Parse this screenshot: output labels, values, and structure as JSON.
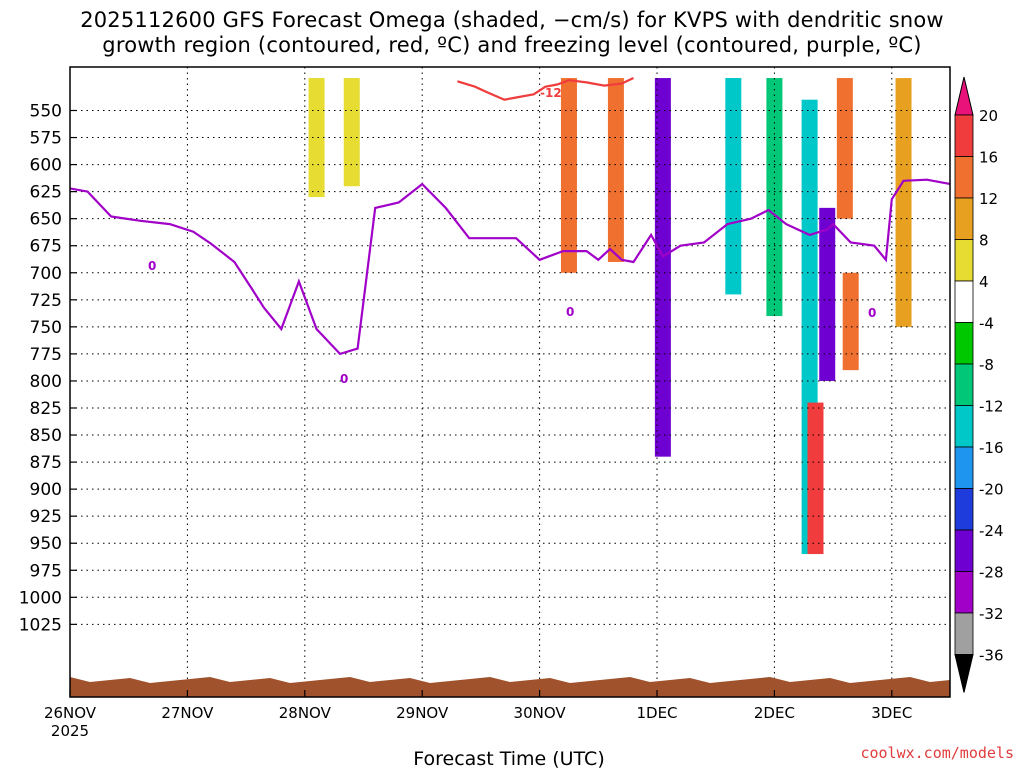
{
  "chart_data": {
    "type": "heatmap",
    "title_line1": "2025112600 GFS Forecast Omega (shaded, −cm/s) for KVPS with dendritic snow",
    "title_line2": "growth region (contoured, red, ºC) and freezing level (contoured, purple, ºC)",
    "xlabel": "Forecast Time (UTC)",
    "ylabel": "",
    "y_ticks": [
      "550",
      "575",
      "600",
      "625",
      "650",
      "675",
      "700",
      "725",
      "750",
      "775",
      "800",
      "825",
      "850",
      "875",
      "900",
      "925",
      "950",
      "975",
      "1000",
      "1025"
    ],
    "x_ticks": [
      "26NOV",
      "27NOV",
      "28NOV",
      "29NOV",
      "30NOV",
      "1DEC",
      "2DEC",
      "3DEC"
    ],
    "x_year_label": "2025",
    "colorbar_labels": [
      "20",
      "16",
      "12",
      "8",
      "4",
      "-4",
      "-8",
      "-12",
      "-16",
      "-20",
      "-24",
      "-28",
      "-32",
      "-36"
    ],
    "colorbar_colors": [
      "#e8127a",
      "#f03c3c",
      "#f07030",
      "#e8a020",
      "#e6dc32",
      "#ffffff",
      "#00c800",
      "#00c878",
      "#00c8c8",
      "#1e96f0",
      "#1e3cdc",
      "#6e00d2",
      "#a000c8",
      "#a0a0a0",
      "#000000"
    ],
    "contour_labels": {
      "red": "-12",
      "purple": "0"
    },
    "freezing_level_hPa": {
      "day": [
        0.0,
        0.15,
        0.35,
        0.6,
        0.85,
        1.05,
        1.2,
        1.4,
        1.55,
        1.65,
        1.8,
        1.95,
        2.1,
        2.3,
        2.45,
        2.6,
        2.8,
        3.0,
        3.2,
        3.4,
        3.6,
        3.8,
        4.0,
        4.2,
        4.4,
        4.5,
        4.6,
        4.7,
        4.8,
        4.95,
        5.05,
        5.2,
        5.4,
        5.6,
        5.8,
        5.95,
        6.1,
        6.3,
        6.45,
        6.5,
        6.65,
        6.85,
        6.95,
        7.0,
        7.1,
        7.3,
        7.5
      ],
      "p": [
        622,
        625,
        648,
        652,
        655,
        662,
        673,
        690,
        715,
        732,
        752,
        708,
        752,
        775,
        770,
        640,
        635,
        618,
        640,
        668,
        668,
        668,
        688,
        680,
        680,
        688,
        678,
        688,
        690,
        665,
        685,
        675,
        672,
        655,
        650,
        642,
        655,
        665,
        660,
        655,
        672,
        675,
        688,
        632,
        615,
        614,
        618
      ]
    },
    "dendritic_12C_contour_hPa": {
      "day": [
        3.3,
        3.45,
        3.55,
        3.7,
        3.8,
        3.95,
        4.05,
        4.15,
        4.25,
        4.4,
        4.55,
        4.7,
        4.8
      ],
      "p": [
        523,
        528,
        533,
        540,
        538,
        535,
        528,
        526,
        522,
        524,
        527,
        525,
        520
      ]
    },
    "omega_cells_cm_s": [
      {
        "day": 2.1,
        "p_top": 520,
        "p_bot": 630,
        "omega": 4
      },
      {
        "day": 2.4,
        "p_top": 520,
        "p_bot": 620,
        "omega": 4
      },
      {
        "day": 4.25,
        "p_top": 520,
        "p_bot": 700,
        "omega": 12
      },
      {
        "day": 4.65,
        "p_top": 520,
        "p_bot": 690,
        "omega": 12
      },
      {
        "day": 5.05,
        "p_top": 520,
        "p_bot": 870,
        "omega": -24
      },
      {
        "day": 5.65,
        "p_top": 520,
        "p_bot": 720,
        "omega": -12
      },
      {
        "day": 6.0,
        "p_top": 520,
        "p_bot": 740,
        "omega": -8
      },
      {
        "day": 6.3,
        "p_top": 540,
        "p_bot": 960,
        "omega": -12
      },
      {
        "day": 6.45,
        "p_top": 640,
        "p_bot": 800,
        "omega": -24
      },
      {
        "day": 6.35,
        "p_top": 820,
        "p_bot": 960,
        "omega": 16
      },
      {
        "day": 6.6,
        "p_top": 520,
        "p_bot": 650,
        "omega": 12
      },
      {
        "day": 6.65,
        "p_top": 700,
        "p_bot": 790,
        "omega": 12
      },
      {
        "day": 7.1,
        "p_top": 520,
        "p_bot": 750,
        "omega": 8
      }
    ]
  },
  "colors": {
    "fz_line": "#a000c8",
    "dendritic_line": "#f03c3c",
    "terrain": "#a0522d"
  },
  "credit": "coolwx.com/models"
}
